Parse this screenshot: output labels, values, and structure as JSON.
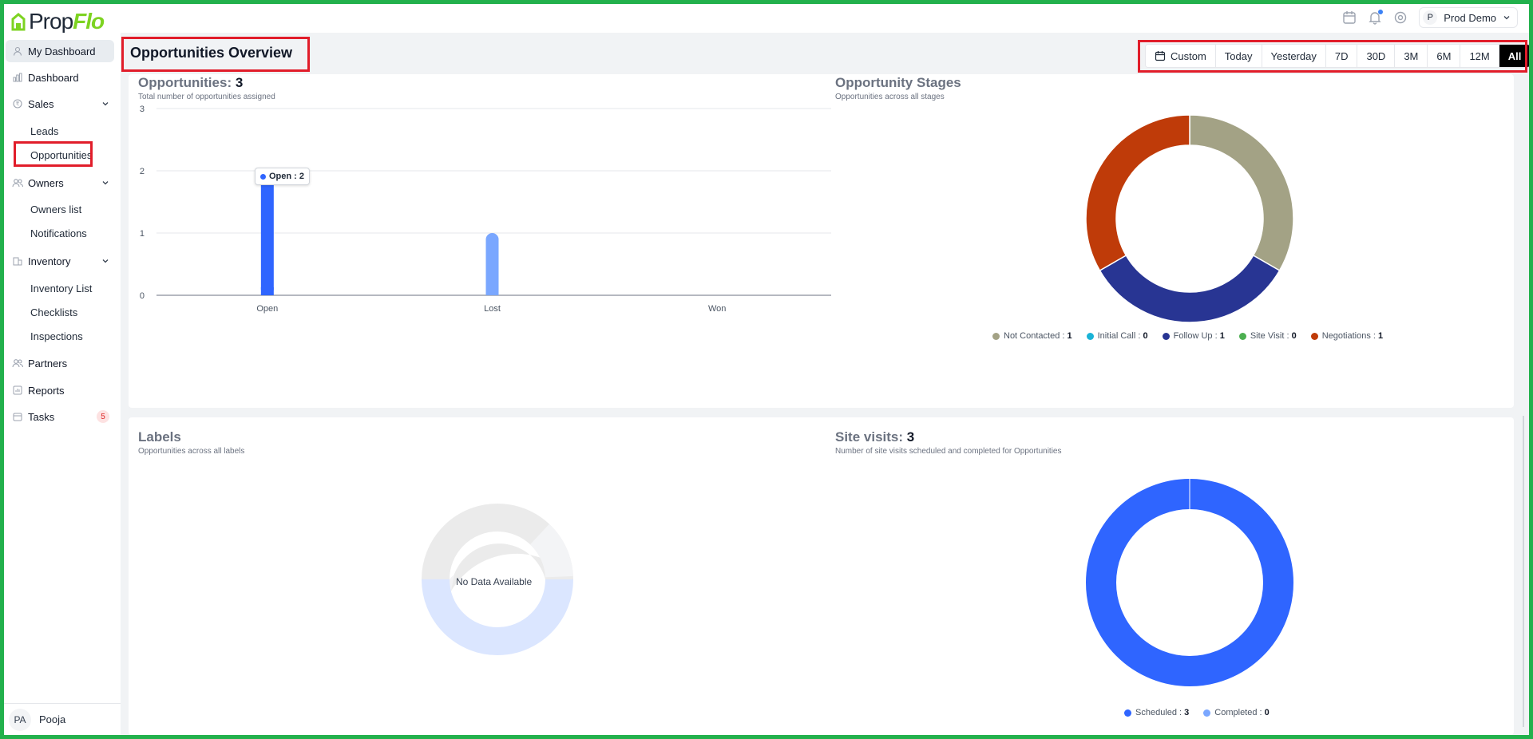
{
  "app": {
    "logo_prefix": "Prop",
    "logo_suffix": "Flo",
    "user_initial": "P",
    "user_name": "Prod Demo"
  },
  "sidebar": {
    "items": [
      {
        "label": "My Dashboard",
        "icon": "user-icon"
      },
      {
        "label": "Dashboard",
        "icon": "chart-icon"
      },
      {
        "label": "Sales",
        "icon": "coin-icon"
      },
      {
        "label": "Owners",
        "icon": "users-icon"
      },
      {
        "label": "Inventory",
        "icon": "building-icon"
      },
      {
        "label": "Partners",
        "icon": "users-icon"
      },
      {
        "label": "Reports",
        "icon": "report-icon"
      },
      {
        "label": "Tasks",
        "icon": "calendar-icon"
      }
    ],
    "sales_sub": [
      "Leads",
      "Opportunities"
    ],
    "owners_sub": [
      "Owners list",
      "Notifications"
    ],
    "inventory_sub": [
      "Inventory List",
      "Checklists",
      "Inspections"
    ],
    "tasks_badge": "5",
    "footer_initials": "PA",
    "footer_name": "Pooja"
  },
  "page": {
    "title": "Opportunities Overview",
    "ranges": [
      "Custom",
      "Today",
      "Yesterday",
      "7D",
      "30D",
      "3M",
      "6M",
      "12M",
      "All"
    ],
    "active_range": "All"
  },
  "opportunities_panel": {
    "title": "Opportunities:",
    "count": "3",
    "subtitle": "Total number of opportunities assigned",
    "tooltip_label": "Open : 2"
  },
  "stages_panel": {
    "title": "Opportunity Stages",
    "subtitle": "Opportunities across all stages"
  },
  "labels_panel": {
    "title": "Labels",
    "subtitle": "Opportunities across all labels",
    "empty": "No Data Available"
  },
  "site_visits_panel": {
    "title": "Site visits:",
    "count": "3",
    "subtitle": "Number of site visits scheduled and completed for Opportunities"
  },
  "colors": {
    "accent": "#2f65ff",
    "light_bar": "#7aa7ff",
    "not_contacted": "#a3a285",
    "initial_call": "#1ab3d6",
    "follow_up": "#283593",
    "site_visit": "#4caf50",
    "negotiations": "#bf3b09",
    "completed": "#7aa7ff"
  },
  "chart_data": [
    {
      "type": "bar",
      "categories": [
        "Open",
        "Lost",
        "Won"
      ],
      "values": [
        2,
        1,
        0
      ],
      "ylim": [
        0,
        3
      ],
      "yticks": [
        0,
        1,
        2,
        3
      ]
    },
    {
      "type": "pie",
      "labels": [
        "Not Contacted",
        "Initial Call",
        "Follow Up",
        "Site Visit",
        "Negotiations"
      ],
      "values": [
        1,
        0,
        1,
        0,
        1
      ]
    },
    {
      "type": "pie",
      "labels": [
        "Scheduled",
        "Completed"
      ],
      "values": [
        3,
        0
      ]
    }
  ]
}
